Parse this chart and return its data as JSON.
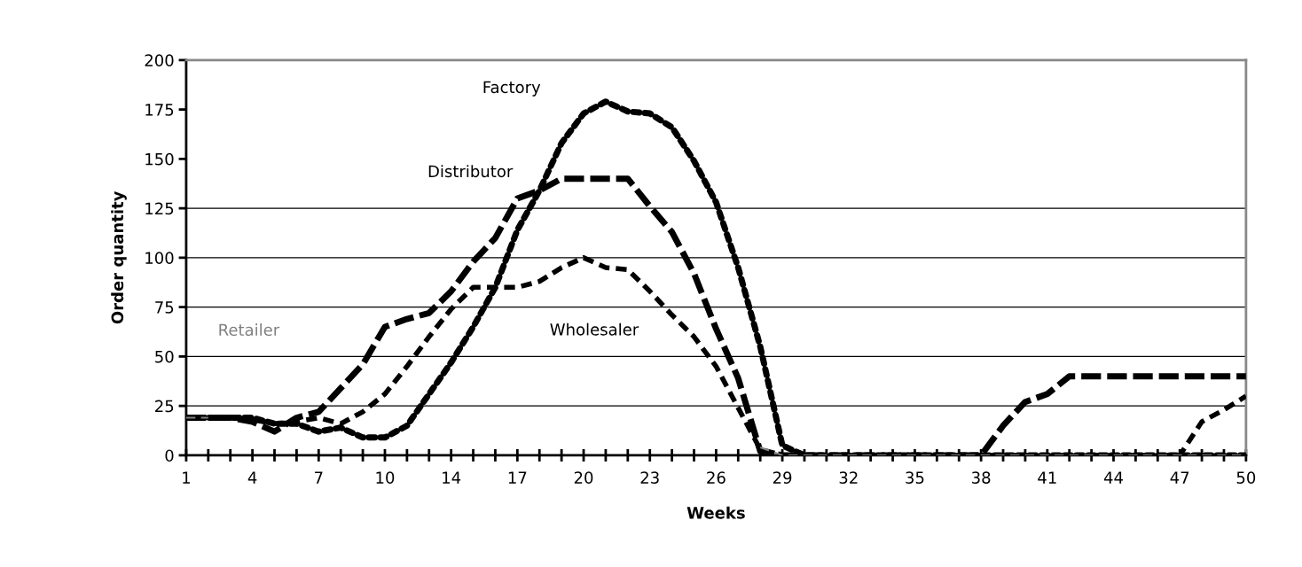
{
  "chart_data": {
    "type": "line",
    "xlabel": "Weeks",
    "ylabel": "Order quantity",
    "categories": [
      "1",
      null,
      null,
      "4",
      null,
      null,
      "7",
      null,
      null,
      "10",
      null,
      null,
      "14",
      null,
      null,
      "17",
      null,
      null,
      "20",
      null,
      null,
      "23",
      null,
      null,
      "26",
      null,
      null,
      "29",
      null,
      null,
      "32",
      null,
      null,
      "35",
      null,
      null,
      "38",
      null,
      null,
      "41",
      null,
      null,
      "44",
      null,
      null,
      "47",
      null,
      null,
      "50"
    ],
    "series": [
      {
        "name": "Factory",
        "color": "#000000",
        "line_style": "dotted",
        "values": [
          19,
          19,
          19,
          19,
          16,
          16,
          12,
          14,
          9,
          9,
          15,
          31,
          47,
          65,
          85,
          114,
          134,
          158,
          173,
          179,
          174,
          173,
          166,
          149,
          128,
          95,
          55,
          5,
          0,
          0,
          0,
          0,
          0,
          0,
          0,
          0,
          0,
          0,
          0,
          0,
          0,
          0,
          0,
          0,
          0,
          0,
          0,
          0,
          0
        ]
      },
      {
        "name": "Distributor",
        "color": "#000000",
        "line_style": "dashed",
        "values": [
          19,
          19,
          19,
          17,
          12,
          19,
          22,
          34,
          46,
          65,
          69,
          72,
          83,
          98,
          110,
          130,
          134,
          140,
          140,
          140,
          140,
          126,
          113,
          92,
          64,
          39,
          2,
          0,
          0,
          0,
          0,
          0,
          0,
          0,
          0,
          0,
          0,
          15,
          27,
          31,
          40,
          40,
          40,
          40,
          40,
          40,
          40,
          40,
          40
        ]
      },
      {
        "name": "Wholesaler",
        "color": "#000000",
        "line_style": "dashed",
        "values": [
          19,
          19,
          19,
          18,
          16,
          17,
          19,
          16,
          22,
          31,
          45,
          60,
          74,
          85,
          85,
          85,
          88,
          95,
          100,
          95,
          94,
          83,
          71,
          60,
          45,
          24,
          3,
          0,
          0,
          0,
          0,
          0,
          0,
          0,
          0,
          0,
          0,
          0,
          0,
          0,
          0,
          0,
          0,
          0,
          0,
          0,
          17,
          23,
          30
        ]
      },
      {
        "name": "Retailer",
        "color": "#808080",
        "line_style": "dashed",
        "values": [
          19,
          19,
          null,
          null,
          null,
          null,
          null,
          null,
          null,
          null,
          null,
          null,
          null,
          null,
          null,
          null,
          null,
          null,
          null,
          null,
          null,
          null,
          null,
          null,
          null,
          null,
          4,
          0,
          0,
          0,
          0,
          0,
          0,
          0,
          0,
          0,
          0,
          0,
          0,
          0,
          0,
          0,
          0,
          0,
          0,
          0,
          0,
          0,
          0
        ]
      }
    ],
    "ylim": [
      0,
      200
    ],
    "yticks": [
      0,
      25,
      50,
      75,
      100,
      125,
      150,
      175,
      200
    ],
    "grid": false,
    "legend": false,
    "marker": "none",
    "ref_lines": [
      {
        "axis": "y",
        "value": 25,
        "color": "#000000"
      },
      {
        "axis": "y",
        "value": 50,
        "color": "#000000"
      },
      {
        "axis": "y",
        "value": 75,
        "color": "#000000"
      },
      {
        "axis": "y",
        "value": 100,
        "color": "#000000"
      },
      {
        "axis": "y",
        "value": 125,
        "color": "#000000"
      }
    ]
  }
}
